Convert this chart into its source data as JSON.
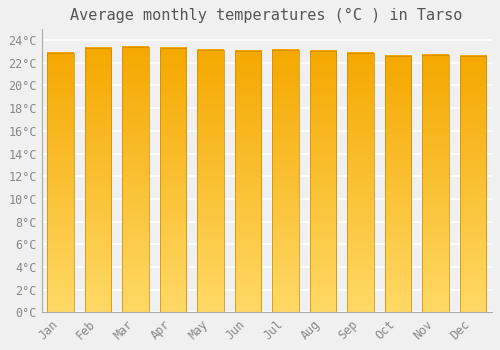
{
  "title": "Average monthly temperatures (°C ) in Tarso",
  "months": [
    "Jan",
    "Feb",
    "Mar",
    "Apr",
    "May",
    "Jun",
    "Jul",
    "Aug",
    "Sep",
    "Oct",
    "Nov",
    "Dec"
  ],
  "values": [
    22.9,
    23.3,
    23.4,
    23.3,
    23.1,
    23.0,
    23.1,
    23.0,
    22.9,
    22.6,
    22.7,
    22.6
  ],
  "bar_color_top": "#F5A800",
  "bar_color_bottom": "#FFD966",
  "ylim": [
    0,
    25
  ],
  "yticks": [
    0,
    2,
    4,
    6,
    8,
    10,
    12,
    14,
    16,
    18,
    20,
    22,
    24
  ],
  "ytick_labels": [
    "0°C",
    "2°C",
    "4°C",
    "6°C",
    "8°C",
    "10°C",
    "12°C",
    "14°C",
    "16°C",
    "18°C",
    "20°C",
    "22°C",
    "24°C"
  ],
  "background_color": "#f0f0f0",
  "grid_color": "#ffffff",
  "title_fontsize": 11,
  "tick_fontsize": 8.5,
  "bar_edge_color": "#CC8800",
  "bar_width": 0.7,
  "figsize": [
    5.0,
    3.5
  ],
  "dpi": 100
}
